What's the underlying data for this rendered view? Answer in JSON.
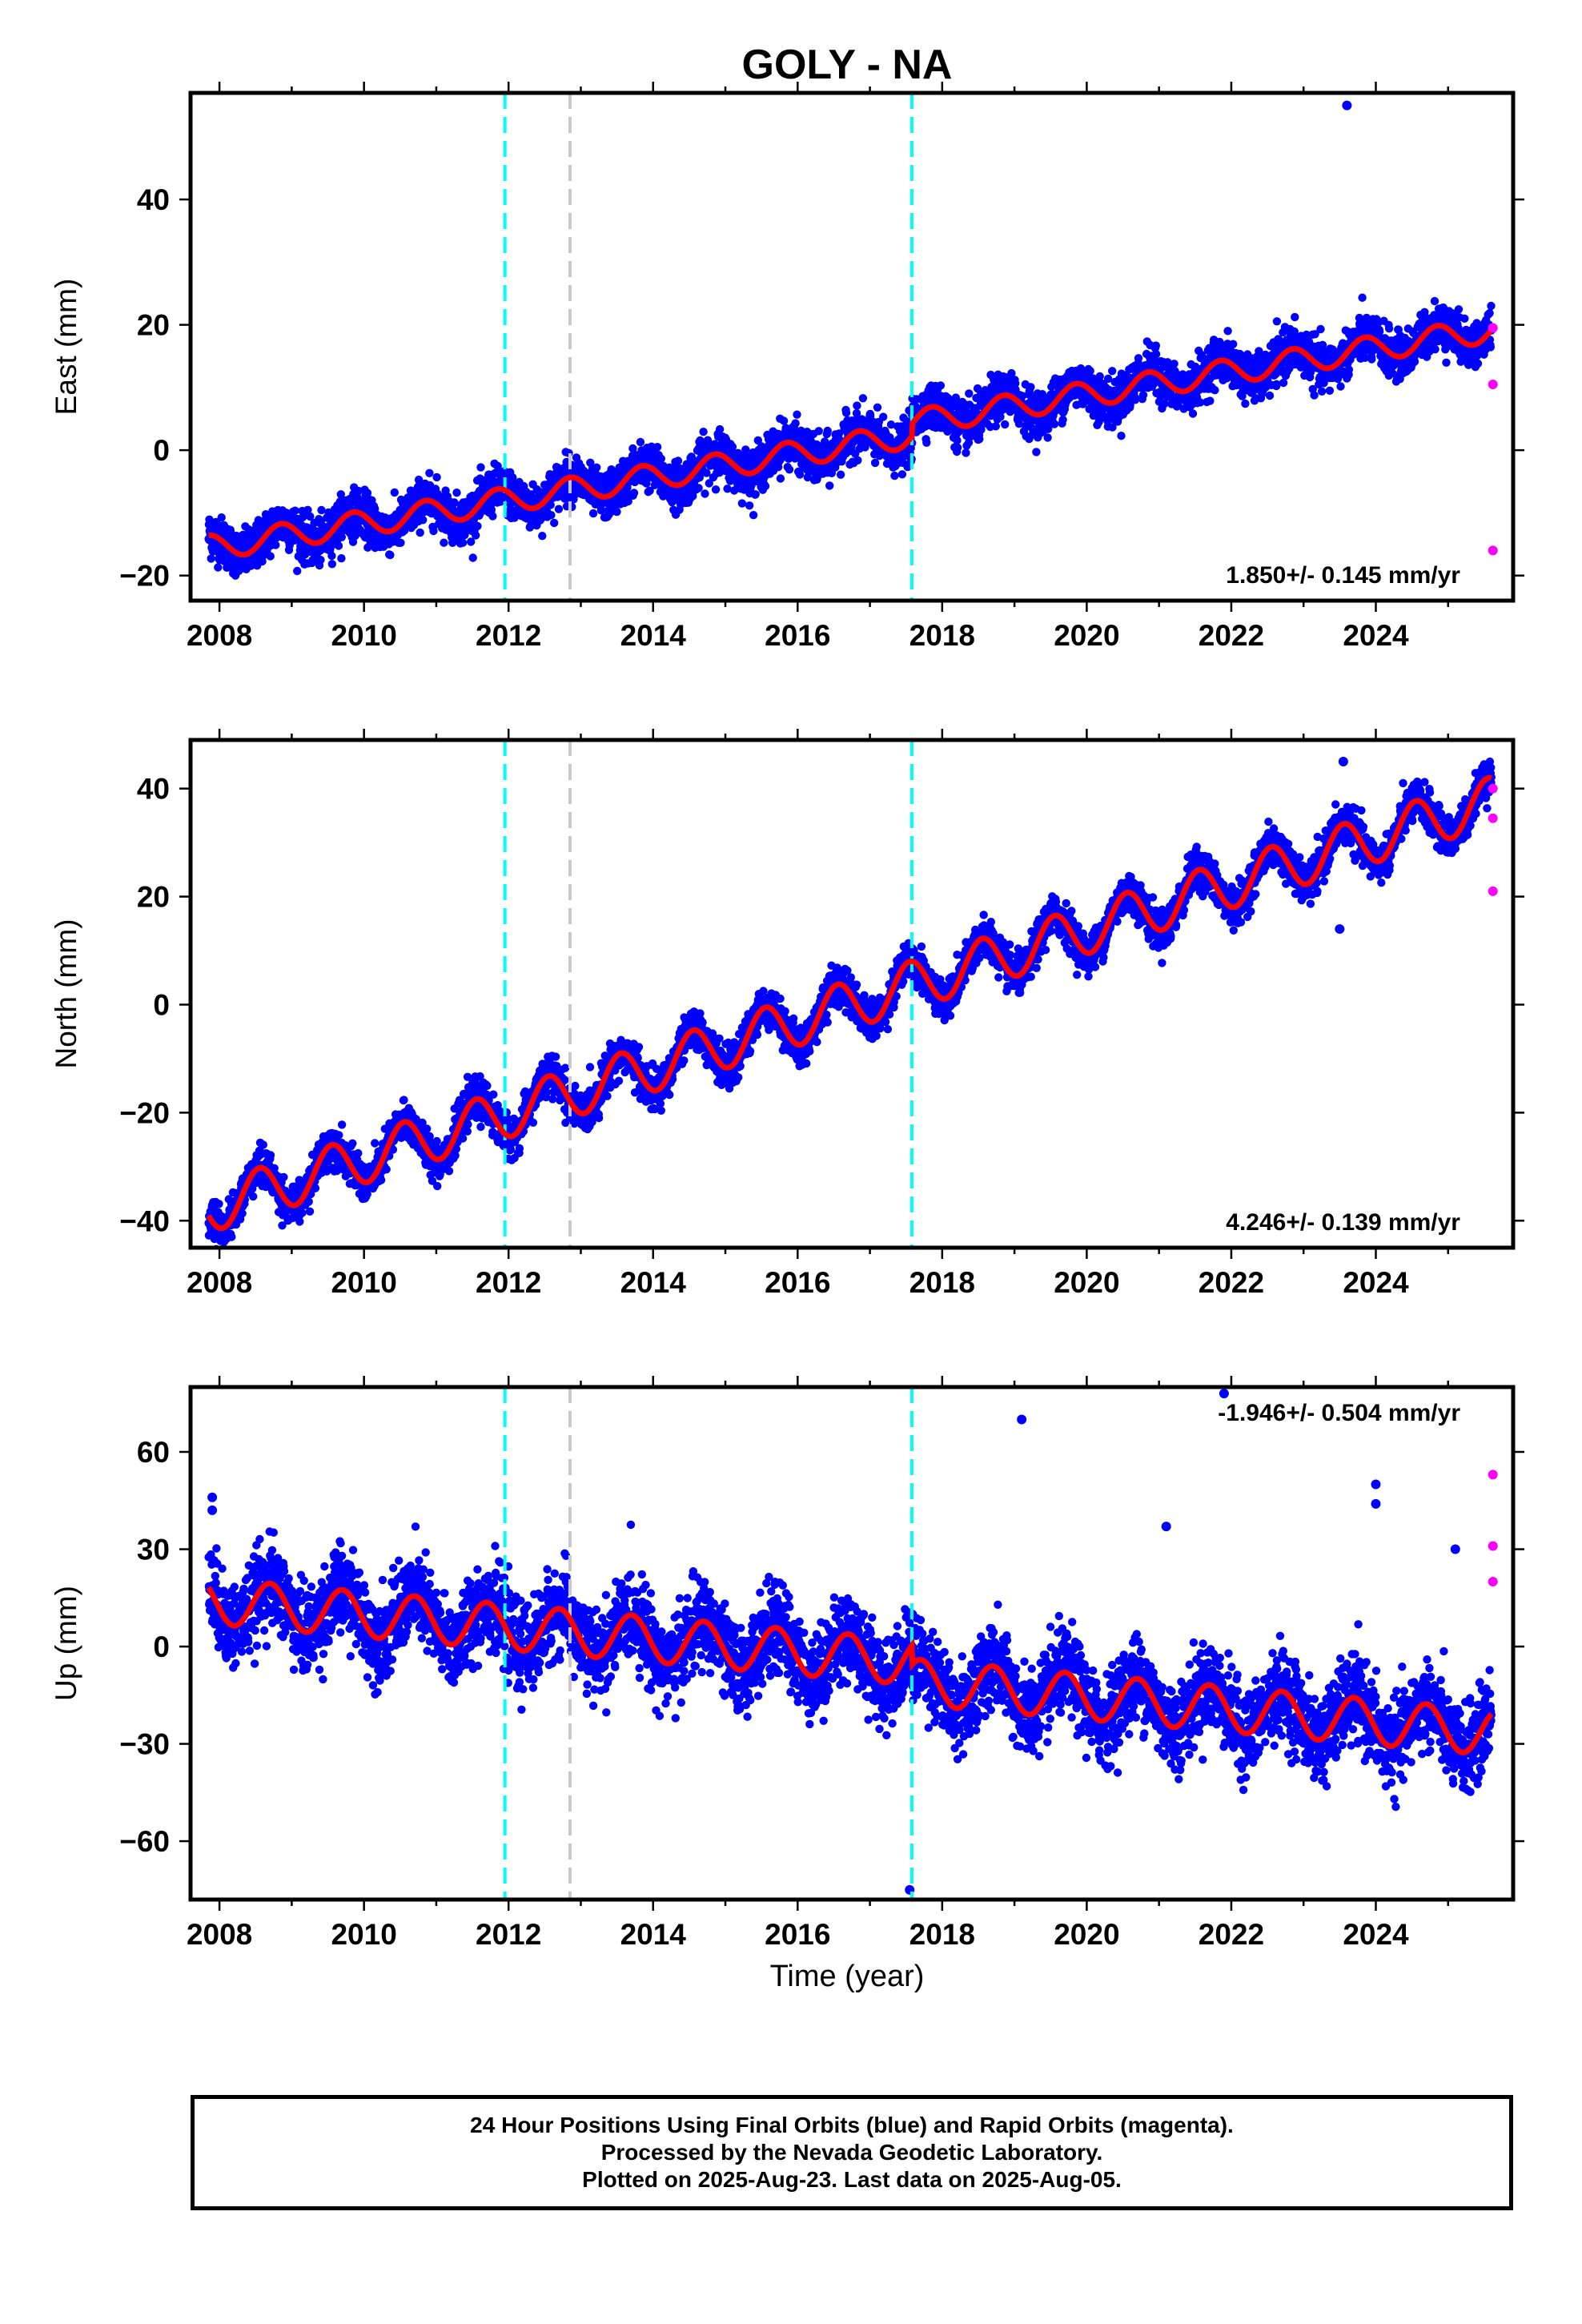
{
  "title": "GOLY - NA",
  "xlabel": "Time (year)",
  "footer": {
    "lines": [
      "24 Hour Positions Using Final Orbits (blue) and Rapid Orbits (magenta).",
      "Processed by the Nevada Geodetic Laboratory.",
      "Plotted on 2025-Aug-23. Last data on 2025-Aug-05."
    ]
  },
  "colors": {
    "final_orbits": "#0000ff",
    "rapid_orbits": "#ff00ff",
    "model": "#ff0000",
    "equipment_change": "#00ffff",
    "earthquake": "#c8c8c8"
  },
  "chart_data": [
    {
      "type": "scatter",
      "ylabel": "East (mm)",
      "xlim": [
        2007.6,
        2025.9
      ],
      "ylim": [
        -24,
        57
      ],
      "yticks": [
        -20,
        0,
        20,
        40
      ],
      "xticks": [
        2008,
        2010,
        2012,
        2014,
        2016,
        2018,
        2020,
        2022,
        2024
      ],
      "rate_label": "1.850+/- 0.145 mm/yr",
      "model": {
        "start_value": -15.5,
        "rate": 1.85,
        "annual_amp": 2.0,
        "phase_peak": 0.85,
        "steps": [
          {
            "x": 2017.58,
            "dy": 2.0
          }
        ]
      },
      "vlines": [
        {
          "x": 2011.95,
          "kind": "equipment_change"
        },
        {
          "x": 2012.85,
          "kind": "earthquake"
        },
        {
          "x": 2017.58,
          "kind": "equipment_change"
        }
      ],
      "outliers_final": [
        {
          "x": 2023.6,
          "y": 55
        }
      ],
      "rapid_points": [
        {
          "x": 2025.62,
          "y": 19.5
        },
        {
          "x": 2025.62,
          "y": 10.5
        },
        {
          "x": 2025.62,
          "y": -16
        }
      ]
    },
    {
      "type": "scatter",
      "ylabel": "North (mm)",
      "xlim": [
        2007.6,
        2025.9
      ],
      "ylim": [
        -45,
        49
      ],
      "yticks": [
        -40,
        -20,
        0,
        20,
        40
      ],
      "xticks": [
        2008,
        2010,
        2012,
        2014,
        2016,
        2018,
        2020,
        2022,
        2024
      ],
      "rate_label": "4.246+/- 0.139 mm/yr",
      "model": {
        "start_value": -37.5,
        "rate": 4.246,
        "annual_amp": 4.5,
        "phase_peak": 0.55,
        "steps": []
      },
      "vlines": [
        {
          "x": 2011.95,
          "kind": "equipment_change"
        },
        {
          "x": 2012.85,
          "kind": "earthquake"
        },
        {
          "x": 2017.58,
          "kind": "equipment_change"
        }
      ],
      "outliers_final": [
        {
          "x": 2023.5,
          "y": 14
        },
        {
          "x": 2023.55,
          "y": 45
        }
      ],
      "rapid_points": [
        {
          "x": 2025.62,
          "y": 40
        },
        {
          "x": 2025.62,
          "y": 34.5
        },
        {
          "x": 2025.62,
          "y": 21
        }
      ]
    },
    {
      "type": "scatter",
      "ylabel": "Up (mm)",
      "xlim": [
        2007.6,
        2025.9
      ],
      "ylim": [
        -78,
        80
      ],
      "yticks": [
        -60,
        -30,
        0,
        30,
        60
      ],
      "xticks": [
        2008,
        2010,
        2012,
        2014,
        2016,
        2018,
        2020,
        2022,
        2024
      ],
      "rate_label": "-1.946+/- 0.504 mm/yr",
      "model": {
        "start_value": 14,
        "rate": -1.946,
        "annual_amp": 7.0,
        "phase_peak": 0.7,
        "steps": [
          {
            "x": 2017.58,
            "dy": -6.0
          }
        ]
      },
      "vlines": [
        {
          "x": 2011.95,
          "kind": "equipment_change"
        },
        {
          "x": 2012.85,
          "kind": "earthquake"
        },
        {
          "x": 2017.58,
          "kind": "equipment_change"
        }
      ],
      "outliers_final": [
        {
          "x": 2007.9,
          "y": 46
        },
        {
          "x": 2007.9,
          "y": 42
        },
        {
          "x": 2019.1,
          "y": 70
        },
        {
          "x": 2021.1,
          "y": 37
        },
        {
          "x": 2021.9,
          "y": 78
        },
        {
          "x": 2024.0,
          "y": 50
        },
        {
          "x": 2024.0,
          "y": 44
        },
        {
          "x": 2025.1,
          "y": 30
        },
        {
          "x": 2017.55,
          "y": -75
        }
      ],
      "rapid_points": [
        {
          "x": 2025.62,
          "y": 53
        },
        {
          "x": 2025.62,
          "y": 31
        },
        {
          "x": 2025.62,
          "y": 20
        }
      ]
    }
  ]
}
